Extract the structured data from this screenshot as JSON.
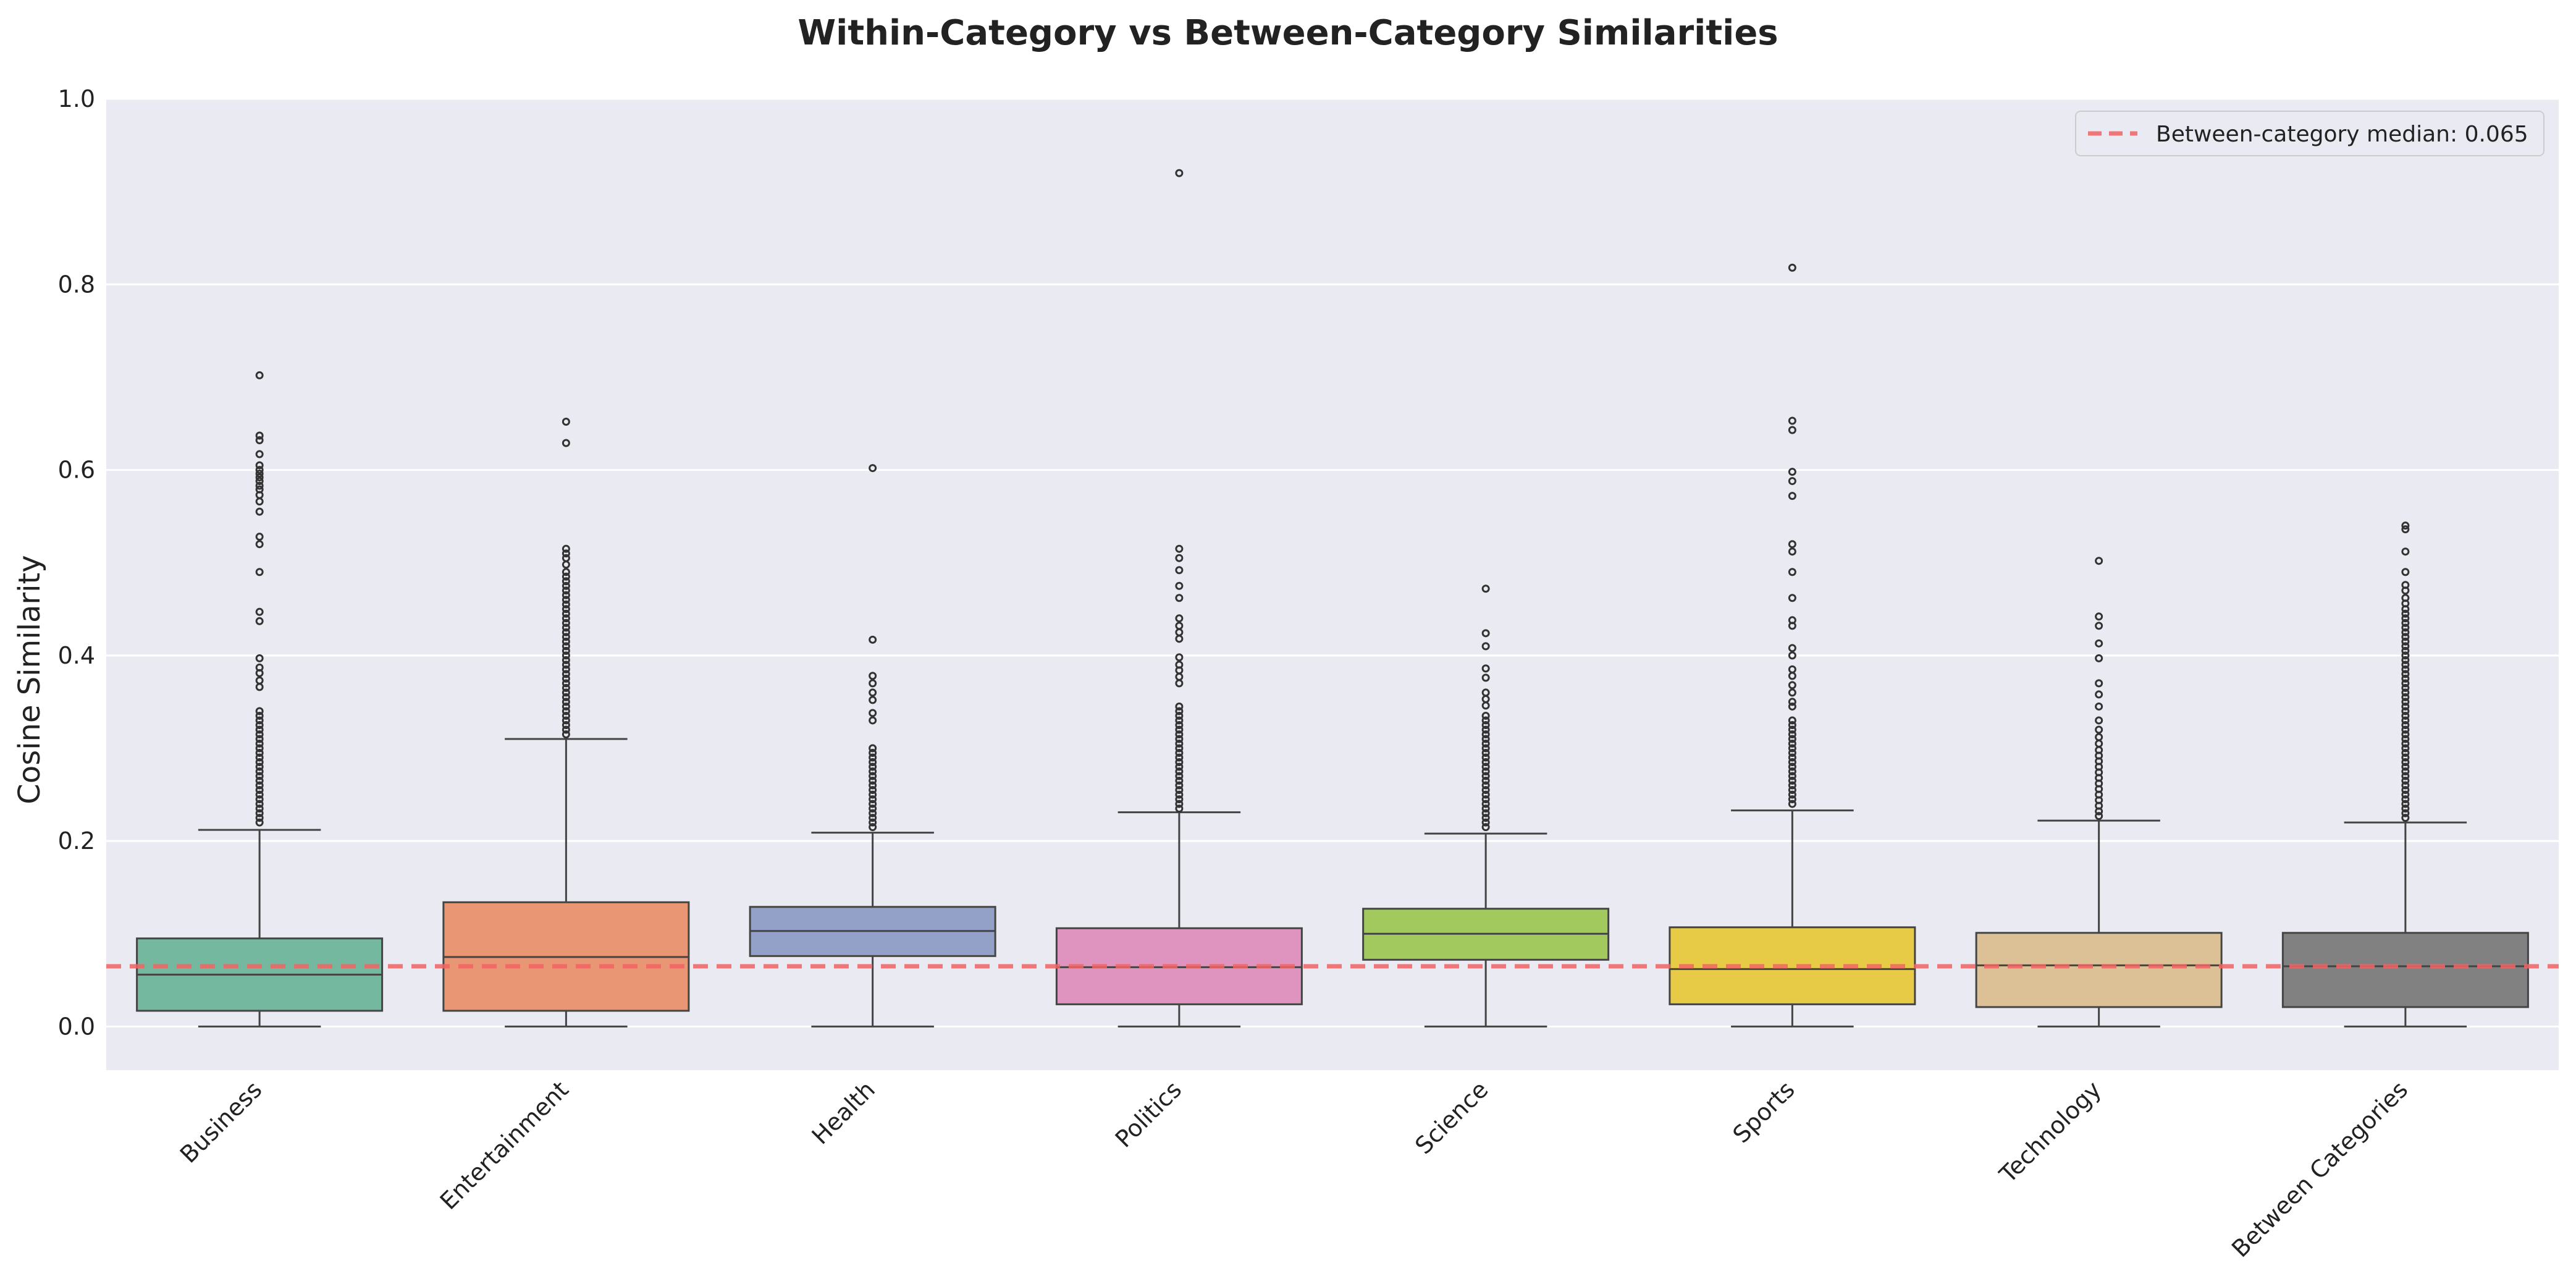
{
  "chart_data": {
    "type": "box",
    "title": "Within-Category vs Between-Category Similarities",
    "xlabel": "",
    "ylabel": "Cosine Similarity",
    "ylim": [
      -0.047,
      1.0
    ],
    "yticks": [
      0.0,
      0.2,
      0.4,
      0.6,
      0.8,
      1.0
    ],
    "ytick_labels": [
      "0.0",
      "0.2",
      "0.4",
      "0.6",
      "0.8",
      "1.0"
    ],
    "grid": true,
    "legend_position": "top-right",
    "reference_line": {
      "value": 0.065,
      "label": "Between-category median: 0.065",
      "color": "#f26464",
      "style": "dashed"
    },
    "categories": [
      "Business",
      "Entertainment",
      "Health",
      "Politics",
      "Science",
      "Sports",
      "Technology",
      "Between Categories"
    ],
    "boxes": [
      {
        "name": "Business",
        "color": "#74b8a0",
        "min": 0.0,
        "q1": 0.017,
        "median": 0.056,
        "q3": 0.095,
        "max": 0.212,
        "outliers": [
          0.702,
          0.637,
          0.632,
          0.617,
          0.605,
          0.6,
          0.596,
          0.592,
          0.588,
          0.583,
          0.579,
          0.573,
          0.566,
          0.555,
          0.528,
          0.52,
          0.49,
          0.447,
          0.437,
          0.397,
          0.387,
          0.381,
          0.373,
          0.366,
          0.34,
          0.335,
          0.33,
          0.325,
          0.32,
          0.315,
          0.31,
          0.305,
          0.3,
          0.295,
          0.29,
          0.285,
          0.28,
          0.275,
          0.27,
          0.265,
          0.26,
          0.255,
          0.25,
          0.245,
          0.24,
          0.235,
          0.23,
          0.225,
          0.22
        ]
      },
      {
        "name": "Entertainment",
        "color": "#e99675",
        "min": 0.0,
        "q1": 0.017,
        "median": 0.075,
        "q3": 0.134,
        "max": 0.31,
        "outliers": [
          0.652,
          0.629,
          0.515,
          0.51,
          0.505,
          0.498,
          0.49,
          0.485,
          0.48,
          0.475,
          0.47,
          0.465,
          0.46,
          0.455,
          0.45,
          0.445,
          0.44,
          0.435,
          0.43,
          0.425,
          0.42,
          0.415,
          0.41,
          0.405,
          0.4,
          0.395,
          0.39,
          0.385,
          0.38,
          0.375,
          0.37,
          0.365,
          0.36,
          0.355,
          0.35,
          0.345,
          0.34,
          0.335,
          0.33,
          0.325,
          0.32,
          0.315
        ]
      },
      {
        "name": "Health",
        "color": "#93a0c7",
        "min": 0.0,
        "q1": 0.076,
        "median": 0.103,
        "q3": 0.129,
        "max": 0.209,
        "outliers": [
          0.602,
          0.417,
          0.378,
          0.37,
          0.36,
          0.352,
          0.338,
          0.33,
          0.3,
          0.295,
          0.29,
          0.285,
          0.28,
          0.275,
          0.27,
          0.265,
          0.26,
          0.255,
          0.25,
          0.245,
          0.24,
          0.235,
          0.23,
          0.225,
          0.22,
          0.215
        ]
      },
      {
        "name": "Politics",
        "color": "#de94bf",
        "min": 0.0,
        "q1": 0.024,
        "median": 0.064,
        "q3": 0.106,
        "max": 0.231,
        "outliers": [
          0.92,
          0.515,
          0.505,
          0.492,
          0.475,
          0.462,
          0.44,
          0.432,
          0.425,
          0.418,
          0.398,
          0.39,
          0.384,
          0.377,
          0.37,
          0.345,
          0.34,
          0.335,
          0.33,
          0.325,
          0.32,
          0.315,
          0.31,
          0.305,
          0.3,
          0.295,
          0.29,
          0.285,
          0.28,
          0.275,
          0.27,
          0.265,
          0.26,
          0.255,
          0.25,
          0.245,
          0.24,
          0.235
        ]
      },
      {
        "name": "Science",
        "color": "#a2c95e",
        "min": 0.0,
        "q1": 0.072,
        "median": 0.1,
        "q3": 0.127,
        "max": 0.208,
        "outliers": [
          0.472,
          0.424,
          0.41,
          0.386,
          0.376,
          0.36,
          0.353,
          0.346,
          0.335,
          0.33,
          0.325,
          0.32,
          0.315,
          0.31,
          0.305,
          0.3,
          0.295,
          0.29,
          0.285,
          0.28,
          0.275,
          0.27,
          0.265,
          0.26,
          0.255,
          0.25,
          0.245,
          0.24,
          0.235,
          0.23,
          0.225,
          0.22,
          0.215
        ]
      },
      {
        "name": "Sports",
        "color": "#e7ca45",
        "min": 0.0,
        "q1": 0.024,
        "median": 0.062,
        "q3": 0.107,
        "max": 0.233,
        "outliers": [
          0.818,
          0.653,
          0.643,
          0.598,
          0.588,
          0.572,
          0.52,
          0.512,
          0.49,
          0.462,
          0.438,
          0.432,
          0.408,
          0.4,
          0.385,
          0.378,
          0.368,
          0.36,
          0.35,
          0.345,
          0.33,
          0.325,
          0.32,
          0.315,
          0.31,
          0.305,
          0.3,
          0.295,
          0.29,
          0.285,
          0.28,
          0.275,
          0.27,
          0.265,
          0.26,
          0.255,
          0.25,
          0.245,
          0.24
        ]
      },
      {
        "name": "Technology",
        "color": "#dcc196",
        "min": 0.0,
        "q1": 0.021,
        "median": 0.066,
        "q3": 0.101,
        "max": 0.222,
        "outliers": [
          0.502,
          0.442,
          0.432,
          0.413,
          0.397,
          0.37,
          0.358,
          0.345,
          0.33,
          0.32,
          0.312,
          0.305,
          0.298,
          0.292,
          0.286,
          0.28,
          0.274,
          0.268,
          0.262,
          0.256,
          0.25,
          0.244,
          0.238,
          0.232,
          0.227
        ]
      },
      {
        "name": "Between Categories",
        "color": "#818181",
        "min": 0.0,
        "q1": 0.021,
        "median": 0.065,
        "q3": 0.101,
        "max": 0.22,
        "outliers": [
          0.54,
          0.536,
          0.512,
          0.49,
          0.476,
          0.47,
          0.462,
          0.456,
          0.45,
          0.445,
          0.44,
          0.435,
          0.43,
          0.425,
          0.42,
          0.415,
          0.41,
          0.405,
          0.4,
          0.395,
          0.39,
          0.385,
          0.38,
          0.375,
          0.37,
          0.365,
          0.36,
          0.355,
          0.35,
          0.345,
          0.34,
          0.335,
          0.33,
          0.325,
          0.32,
          0.315,
          0.31,
          0.305,
          0.3,
          0.295,
          0.29,
          0.285,
          0.28,
          0.275,
          0.27,
          0.265,
          0.26,
          0.255,
          0.25,
          0.245,
          0.24,
          0.235,
          0.23,
          0.225
        ]
      }
    ]
  },
  "colors": {
    "plot_background": "#eaeaf2",
    "grid": "#ffffff",
    "box_edge": "#444444"
  }
}
